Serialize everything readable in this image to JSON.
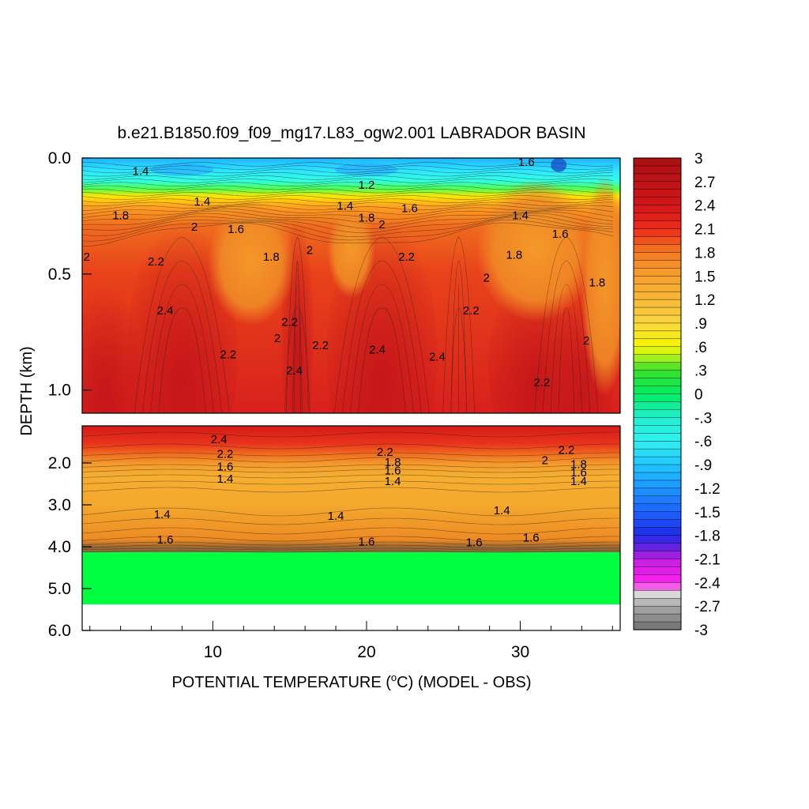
{
  "chart_data": {
    "type": "heatmap",
    "title": "b.e21.B1850.f09_f09_mg17.L83_ogw2.001 LABRADOR BASIN",
    "xlabel": "POTENTIAL TEMPERATURE (",
    "xlabel_unit": "C) (MODEL - OBS)",
    "ylabel": "DEPTH (km)",
    "x_ticks": [
      "10",
      "20",
      "30"
    ],
    "x_tick_values": [
      10,
      20,
      30
    ],
    "xlim": [
      1.5,
      36.5
    ],
    "upper_panel": {
      "ylim": [
        0.0,
        1.1
      ],
      "y_ticks": [
        "0.0",
        "0.5",
        "1.0"
      ],
      "y_tick_values": [
        0.0,
        0.5,
        1.0
      ]
    },
    "lower_panel": {
      "ylim": [
        1.1,
        6.0
      ],
      "y_ticks": [
        "2.0",
        "3.0",
        "4.0",
        "5.0",
        "6.0"
      ],
      "y_tick_values": [
        2.0,
        3.0,
        4.0,
        5.0,
        6.0
      ]
    },
    "colorbar": {
      "labels": [
        "3",
        "2.7",
        "2.4",
        "2.1",
        "1.8",
        "1.5",
        "1.2",
        ".9",
        ".6",
        ".3",
        "0",
        "-.3",
        "-.6",
        "-.9",
        "-1.2",
        "-1.5",
        "-1.8",
        "-2.1",
        "-2.4",
        "-2.7",
        "-3"
      ],
      "min": -3,
      "max": 3
    },
    "contour_labels_upper": [
      {
        "text": "1.8",
        "x": 4.0,
        "y": 0.25
      },
      {
        "text": "1.4",
        "x": 9.3,
        "y": 0.19
      },
      {
        "text": "2",
        "x": 8.8,
        "y": 0.3
      },
      {
        "text": "1.6",
        "x": 11.5,
        "y": 0.31
      },
      {
        "text": "1.8",
        "x": 13.8,
        "y": 0.43
      },
      {
        "text": "2",
        "x": 1.8,
        "y": 0.43
      },
      {
        "text": "2.2",
        "x": 6.3,
        "y": 0.45
      },
      {
        "text": "2.4",
        "x": 6.9,
        "y": 0.66
      },
      {
        "text": "2",
        "x": 14.2,
        "y": 0.78
      },
      {
        "text": "2.2",
        "x": 11.0,
        "y": 0.85
      },
      {
        "text": "2.2",
        "x": 15.0,
        "y": 0.71
      },
      {
        "text": "2",
        "x": 16.3,
        "y": 0.4
      },
      {
        "text": "2.2",
        "x": 17.0,
        "y": 0.81
      },
      {
        "text": "2.4",
        "x": 15.3,
        "y": 0.92
      },
      {
        "text": "1.4",
        "x": 18.6,
        "y": 0.21
      },
      {
        "text": "1.8",
        "x": 20.0,
        "y": 0.26
      },
      {
        "text": "2",
        "x": 21.0,
        "y": 0.29
      },
      {
        "text": "1.6",
        "x": 22.8,
        "y": 0.22
      },
      {
        "text": "2.2",
        "x": 22.6,
        "y": 0.43
      },
      {
        "text": "2.4",
        "x": 20.7,
        "y": 0.83
      },
      {
        "text": "2.4",
        "x": 24.6,
        "y": 0.86
      },
      {
        "text": "2.2",
        "x": 26.8,
        "y": 0.66
      },
      {
        "text": "2",
        "x": 27.8,
        "y": 0.52
      },
      {
        "text": "1.8",
        "x": 29.6,
        "y": 0.42
      },
      {
        "text": "1.4",
        "x": 30.0,
        "y": 0.25
      },
      {
        "text": "1.6",
        "x": 32.6,
        "y": 0.33
      },
      {
        "text": "1.8",
        "x": 35.0,
        "y": 0.54
      },
      {
        "text": "2",
        "x": 34.3,
        "y": 0.79
      },
      {
        "text": "2.2",
        "x": 31.4,
        "y": 0.97
      },
      {
        "text": "1.6",
        "x": 30.4,
        "y": 0.02
      },
      {
        "text": "1.4",
        "x": 5.3,
        "y": 0.06
      },
      {
        "text": "1.2",
        "x": 20.0,
        "y": 0.12
      }
    ],
    "contour_labels_lower": [
      {
        "text": "2.4",
        "x": 10.4,
        "y": 1.45
      },
      {
        "text": "2.2",
        "x": 10.8,
        "y": 1.8
      },
      {
        "text": "1.6",
        "x": 10.8,
        "y": 2.1
      },
      {
        "text": "1.4",
        "x": 10.8,
        "y": 2.4
      },
      {
        "text": "2.2",
        "x": 21.2,
        "y": 1.75
      },
      {
        "text": "1.8",
        "x": 21.7,
        "y": 2.0
      },
      {
        "text": "1.6",
        "x": 21.7,
        "y": 2.2
      },
      {
        "text": "1.4",
        "x": 21.7,
        "y": 2.45
      },
      {
        "text": "2",
        "x": 31.6,
        "y": 1.95
      },
      {
        "text": "2.2",
        "x": 33.0,
        "y": 1.7
      },
      {
        "text": "1.8",
        "x": 33.8,
        "y": 2.05
      },
      {
        "text": "1.6",
        "x": 33.8,
        "y": 2.25
      },
      {
        "text": "1.4",
        "x": 33.8,
        "y": 2.45
      },
      {
        "text": "1.4",
        "x": 6.7,
        "y": 3.25
      },
      {
        "text": "1.4",
        "x": 18.0,
        "y": 3.28
      },
      {
        "text": "1.4",
        "x": 28.8,
        "y": 3.15
      },
      {
        "text": "1.6",
        "x": 6.9,
        "y": 3.85
      },
      {
        "text": "1.6",
        "x": 20.0,
        "y": 3.9
      },
      {
        "text": "1.6",
        "x": 27.0,
        "y": 3.92
      },
      {
        "text": "1.6",
        "x": 30.7,
        "y": 3.8
      }
    ]
  }
}
